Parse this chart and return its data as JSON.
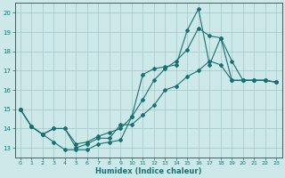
{
  "xlabel": "Humidex (Indice chaleur)",
  "bg_color": "#cce8e8",
  "grid_color": "#aacccc",
  "line_color": "#1a7070",
  "xlim": [
    -0.5,
    23.5
  ],
  "ylim": [
    12.5,
    20.5
  ],
  "yticks": [
    13,
    14,
    15,
    16,
    17,
    18,
    19,
    20
  ],
  "xticks": [
    0,
    1,
    2,
    3,
    4,
    5,
    6,
    7,
    8,
    9,
    10,
    11,
    12,
    13,
    14,
    15,
    16,
    17,
    18,
    19,
    20,
    21,
    22,
    23
  ],
  "series1_x": [
    0,
    1,
    2,
    3,
    4,
    5,
    6,
    7,
    8,
    9,
    10,
    11,
    12,
    13,
    14,
    15,
    16,
    17,
    18,
    19,
    20,
    21,
    22,
    23
  ],
  "series1_y": [
    15.0,
    14.1,
    13.7,
    14.0,
    14.0,
    13.0,
    13.2,
    13.5,
    13.5,
    14.2,
    14.2,
    14.7,
    15.2,
    16.0,
    16.2,
    16.7,
    17.0,
    17.5,
    17.3,
    16.5,
    16.5,
    16.5,
    16.5,
    16.4
  ],
  "series2_x": [
    0,
    1,
    2,
    3,
    4,
    5,
    6,
    7,
    8,
    9,
    10,
    11,
    12,
    13,
    14,
    15,
    16,
    17,
    18,
    19,
    20,
    21,
    22,
    23
  ],
  "series2_y": [
    15.0,
    14.1,
    13.7,
    14.0,
    14.0,
    13.2,
    13.3,
    13.6,
    13.8,
    14.0,
    14.6,
    15.5,
    16.5,
    17.1,
    17.5,
    18.1,
    19.2,
    18.8,
    18.7,
    17.5,
    16.5,
    16.5,
    16.5,
    16.4
  ],
  "series3_x": [
    0,
    1,
    2,
    3,
    4,
    5,
    6,
    7,
    8,
    9,
    10,
    11,
    12,
    13,
    14,
    15,
    16,
    17,
    18,
    19,
    20,
    21,
    22,
    23
  ],
  "series3_y": [
    15.0,
    14.1,
    13.7,
    13.3,
    12.9,
    12.9,
    12.9,
    13.2,
    13.3,
    13.4,
    14.6,
    16.8,
    17.1,
    17.2,
    17.3,
    19.1,
    20.2,
    17.3,
    18.7,
    16.5,
    16.5,
    16.5,
    16.5,
    16.4
  ]
}
